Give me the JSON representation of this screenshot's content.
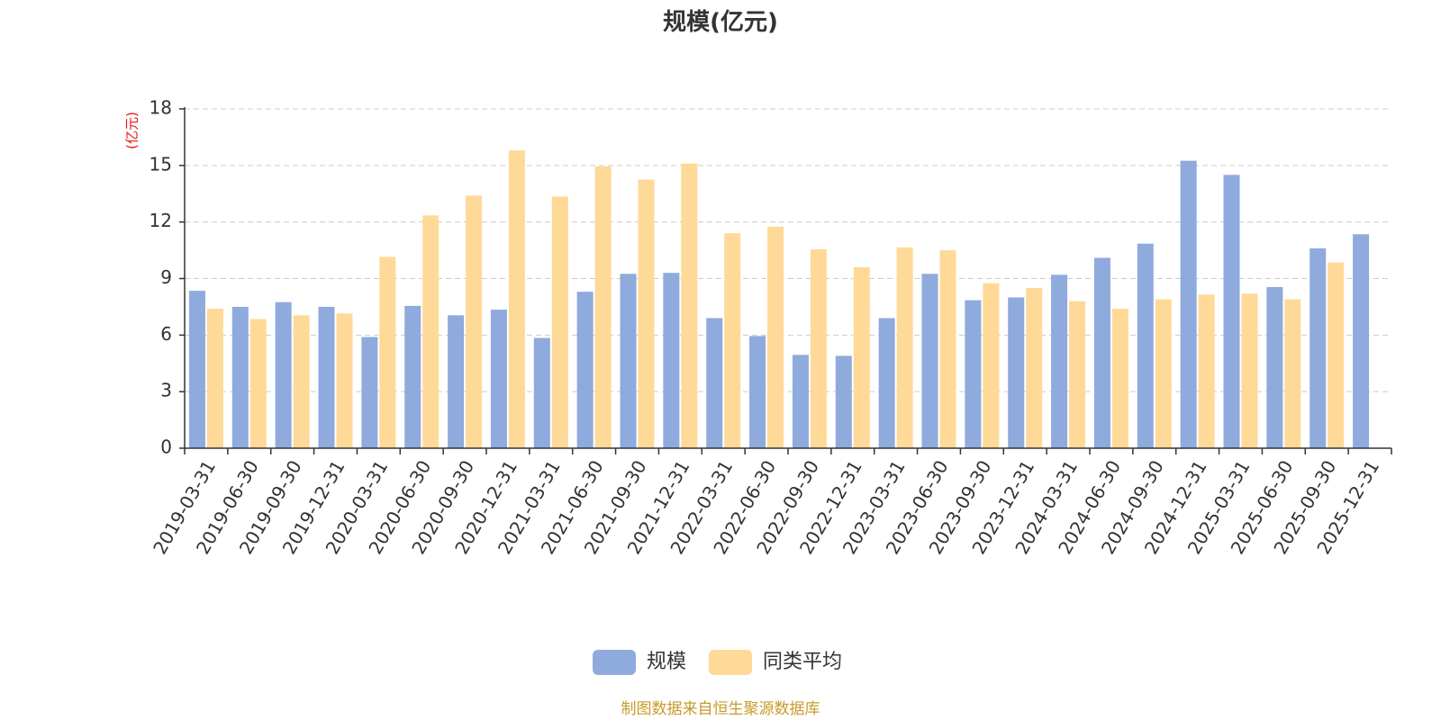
{
  "chart_data": {
    "type": "bar",
    "title": "规模(亿元)",
    "ylabel": "(亿元)",
    "xlabel": "",
    "ylim": [
      0,
      18
    ],
    "yticks": [
      0,
      3,
      6,
      9,
      12,
      15,
      18
    ],
    "grid": true,
    "legend_position": "bottom-center",
    "categories": [
      "2019-03-31",
      "2019-06-30",
      "2019-09-30",
      "2019-12-31",
      "2020-03-31",
      "2020-06-30",
      "2020-09-30",
      "2020-12-31",
      "2021-03-31",
      "2021-06-30",
      "2021-09-30",
      "2021-12-31",
      "2022-03-31",
      "2022-06-30",
      "2022-09-30",
      "2022-12-31",
      "2023-03-31",
      "2023-06-30",
      "2023-09-30",
      "2023-12-31",
      "2024-03-31",
      "2024-06-30",
      "2024-09-30",
      "2024-12-31",
      "2025-03-31",
      "2025-06-30",
      "2025-09-30",
      "2025-12-31"
    ],
    "series": [
      {
        "name": "规模",
        "color": "#8faadc",
        "values": [
          8.35,
          7.5,
          7.75,
          7.5,
          5.9,
          7.55,
          7.05,
          7.35,
          5.85,
          8.3,
          9.25,
          9.3,
          6.9,
          5.95,
          4.95,
          4.9,
          6.9,
          9.25,
          7.85,
          8.0,
          9.2,
          10.1,
          10.85,
          15.25,
          14.5,
          8.55,
          10.6,
          11.35
        ]
      },
      {
        "name": "同类平均",
        "color": "#ffd998",
        "values": [
          7.4,
          6.85,
          7.05,
          7.15,
          10.15,
          12.35,
          13.4,
          15.8,
          13.35,
          14.95,
          14.25,
          15.1,
          11.4,
          11.75,
          10.55,
          9.6,
          10.65,
          10.5,
          8.75,
          8.5,
          7.8,
          7.4,
          7.9,
          8.15,
          8.2,
          7.9,
          9.85,
          null
        ]
      }
    ],
    "title_color": "#333333",
    "ylabel_color": "#ee1111",
    "grid_color": "#cccccc",
    "axis_color": "#333333"
  },
  "source_note": "制图数据来自恒生聚源数据库",
  "source_note_color": "#c89b2a"
}
